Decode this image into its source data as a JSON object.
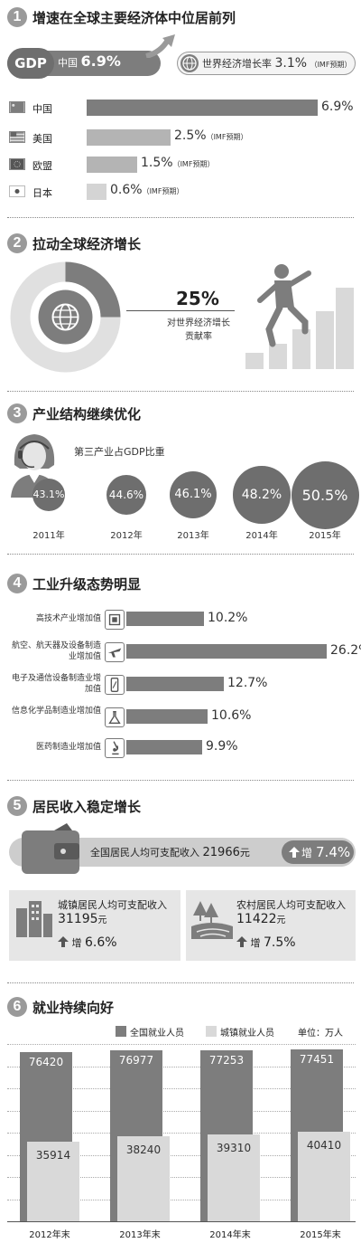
{
  "sections": {
    "s1": {
      "num": "1",
      "title": "增速在全球主要经济体中位居前列"
    },
    "s2": {
      "num": "2",
      "title": "拉动全球经济增长"
    },
    "s3": {
      "num": "3",
      "title": "产业结构继续优化"
    },
    "s4": {
      "num": "4",
      "title": "工业升级态势明显"
    },
    "s5": {
      "num": "5",
      "title": "居民收入稳定增长"
    },
    "s6": {
      "num": "6",
      "title": "就业持续向好"
    }
  },
  "gdp": {
    "badge": "GDP",
    "china_label": "中国",
    "china_value": "6.9%",
    "world_label": "世界经济增长率",
    "world_value": "3.1%",
    "world_note": "（IMF预期）"
  },
  "countries": [
    {
      "name": "中国",
      "value": "6.9%",
      "note": "",
      "pct": 6.9
    },
    {
      "name": "美国",
      "value": "2.5%",
      "note": "（IMF预期）",
      "pct": 2.5
    },
    {
      "name": "欧盟",
      "value": "1.5%",
      "note": "（IMF预期）",
      "pct": 1.5
    },
    {
      "name": "日本",
      "value": "0.6%",
      "note": "（IMF预期）",
      "pct": 0.6
    }
  ],
  "contribution": {
    "value": "25%",
    "label_line1": "对世界经济增长",
    "label_line2": "贡献率",
    "fraction": 0.25
  },
  "tertiary": {
    "label": "第三产业占GDP比重",
    "items": [
      {
        "year": "2011年",
        "value": "43.1%"
      },
      {
        "year": "2012年",
        "value": "44.6%"
      },
      {
        "year": "2013年",
        "value": "46.1%"
      },
      {
        "year": "2014年",
        "value": "48.2%"
      },
      {
        "year": "2015年",
        "value": "50.5%"
      }
    ]
  },
  "industry": [
    {
      "label": "高技术产业增加值",
      "value": "10.2%",
      "pct": 10.2,
      "icon": "chip-icon"
    },
    {
      "label": "航空、航天器及设备制造业增加值",
      "value": "26.2%",
      "pct": 26.2,
      "icon": "airplane-icon"
    },
    {
      "label": "电子及通信设备制造业增加值",
      "value": "12.7%",
      "pct": 12.7,
      "icon": "phone-icon"
    },
    {
      "label": "信息化学品制造业增加值",
      "value": "10.6%",
      "pct": 10.6,
      "icon": "flask-icon"
    },
    {
      "label": "医药制造业增加值",
      "value": "9.9%",
      "pct": 9.9,
      "icon": "microscope-icon"
    }
  ],
  "income": {
    "national_label": "全国居民人均可支配收入",
    "national_value": "21966",
    "national_unit": "元",
    "national_growth_label": "增",
    "national_growth": "7.4%",
    "urban_label": "城镇居民人均可支配收入",
    "urban_value": "31195",
    "urban_unit": "元",
    "urban_growth_label": "增",
    "urban_growth": "6.6%",
    "rural_label": "农村居民人均可支配收入",
    "rural_value": "11422",
    "rural_unit": "元",
    "rural_growth_label": "增",
    "rural_growth": "7.5%"
  },
  "employment": {
    "legend_total": "全国就业人员",
    "legend_urban": "城镇就业人员",
    "unit": "单位：万人"
  },
  "chart_data": {
    "type": "bar",
    "categories": [
      "2012年末",
      "2013年末",
      "2014年末",
      "2015年末"
    ],
    "series": [
      {
        "name": "全国就业人员",
        "values": [
          76420,
          76977,
          77253,
          77451
        ]
      },
      {
        "name": "城镇就业人员",
        "values": [
          35914,
          38240,
          39310,
          40410
        ]
      }
    ],
    "ylim": [
      0,
      80000
    ],
    "grid": true,
    "legend": "top-right"
  },
  "colors": {
    "dark": "#7d7d7d",
    "mid": "#9a9a9a",
    "light": "#d9d9d9"
  }
}
